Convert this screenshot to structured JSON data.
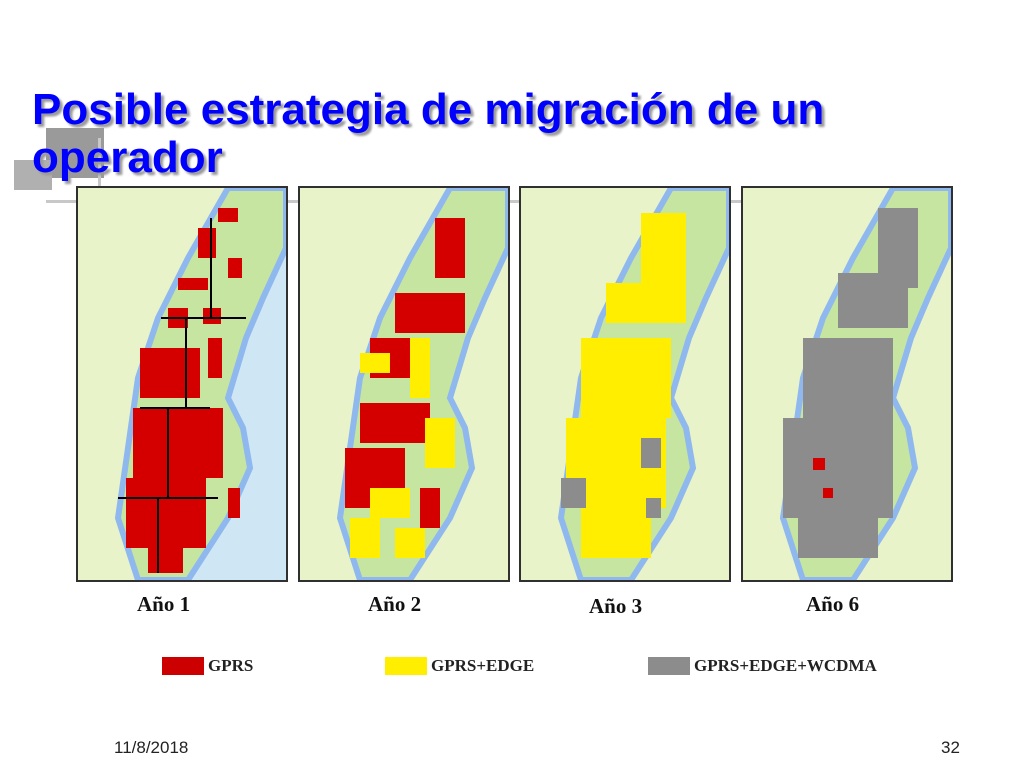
{
  "slide": {
    "title": "Posible estrategia de migración de un operador",
    "date": "11/8/2018",
    "page_number": "32"
  },
  "maps": [
    {
      "year_label": "Año 1",
      "coverage": "GPRS",
      "color": "#d40000"
    },
    {
      "year_label": "Año 2",
      "coverage": "GPRS+EDGE",
      "color": "#ffee00"
    },
    {
      "year_label": "Año 3",
      "coverage": "GPRS+EDGE",
      "color": "#ffee00"
    },
    {
      "year_label": "Año 6",
      "coverage": "GPRS+EDGE+WCDMA",
      "color": "#8c8c8c"
    }
  ],
  "legend": [
    {
      "label": "GPRS",
      "color": "#cc0000"
    },
    {
      "label": "GPRS+EDGE",
      "color": "#ffee00"
    },
    {
      "label": "GPRS+EDGE+WCDMA",
      "color": "#8c8c8c"
    }
  ],
  "colors": {
    "title": "#0000ff",
    "sea": "#cfe6f5",
    "land": "#e9f3c9",
    "coast_shelf": "#8fb8ef"
  }
}
